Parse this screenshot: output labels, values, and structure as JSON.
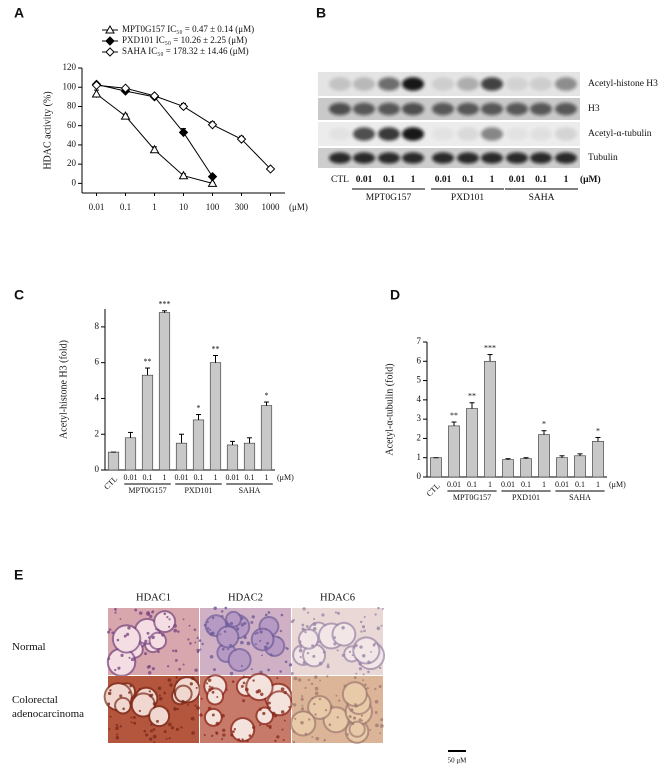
{
  "panels": [
    "A",
    "B",
    "C",
    "D",
    "E"
  ],
  "chart_data": [
    {
      "type": "line",
      "y_label": "HDAC activity (%)",
      "x_unit": "(μM)",
      "categories": [
        "0.01",
        "0.1",
        "1",
        "10",
        "100",
        "300",
        "1000"
      ],
      "ylim": [
        -10,
        120
      ],
      "yticks": [
        0,
        20,
        40,
        60,
        80,
        100,
        120
      ],
      "series": [
        {
          "name": "MPT0G157 IC₅₀ = 0.47 ± 0.14 (μM)",
          "marker": "triangle-open",
          "color": "#000000",
          "values": [
            93,
            70,
            35,
            8,
            0,
            null,
            null
          ],
          "errors": [
            4,
            2,
            3,
            2,
            1,
            null,
            null
          ]
        },
        {
          "name": "PXD101 IC₅₀ = 10.26 ± 2.25 (μM)",
          "marker": "diamond-filled",
          "color": "#000000",
          "values": [
            103,
            96,
            90,
            53,
            7,
            null,
            null
          ],
          "errors": [
            2,
            3,
            3,
            4,
            1,
            null,
            null
          ]
        },
        {
          "name": "SAHA IC₅₀ = 178.32 ± 14.46 (μM)",
          "marker": "diamond-open",
          "color": "#000000",
          "values": [
            102,
            99,
            91,
            80,
            61,
            46,
            15
          ],
          "errors": [
            2,
            1,
            2,
            3,
            3,
            3,
            1
          ]
        }
      ]
    },
    {
      "type": "bar",
      "y_label": "Acetyl-histone H3 (fold)",
      "x_unit": "(μM)",
      "color": "#c8c8c8",
      "categories": [
        "CTL",
        "0.01",
        "0.1",
        "1",
        "0.01",
        "0.1",
        "1",
        "0.01",
        "0.1",
        "1"
      ],
      "groups": [
        "MPT0G157",
        "PXD101",
        "SAHA"
      ],
      "values": [
        1,
        1.8,
        5.3,
        8.8,
        1.5,
        2.8,
        6.0,
        1.4,
        1.5,
        3.6
      ],
      "errors": [
        0,
        0.3,
        0.4,
        0.1,
        0.5,
        0.3,
        0.4,
        0.2,
        0.3,
        0.2
      ],
      "annotations": [
        null,
        null,
        "**",
        "***",
        null,
        "*",
        "**",
        null,
        null,
        "*"
      ],
      "ylim": [
        0,
        9
      ],
      "yticks": [
        0,
        2,
        4,
        6,
        8
      ]
    },
    {
      "type": "bar",
      "y_label": "Acetyl-α-tubulin (fold)",
      "x_unit": "(μM)",
      "color": "#c8c8c8",
      "categories": [
        "CTL",
        "0.01",
        "0.1",
        "1",
        "0.01",
        "0.1",
        "1",
        "0.01",
        "0.1",
        "1"
      ],
      "groups": [
        "MPT0G157",
        "PXD101",
        "SAHA"
      ],
      "values": [
        1,
        2.65,
        3.55,
        6.0,
        0.9,
        0.95,
        2.2,
        1.0,
        1.1,
        1.85
      ],
      "errors": [
        0,
        0.2,
        0.3,
        0.35,
        0.05,
        0.05,
        0.2,
        0.1,
        0.1,
        0.2
      ],
      "annotations": [
        null,
        "**",
        "**",
        "***",
        null,
        null,
        "*",
        null,
        null,
        "*"
      ],
      "ylim": [
        0,
        7
      ],
      "yticks": [
        0,
        1,
        2,
        3,
        4,
        5,
        6,
        7
      ]
    }
  ],
  "blot": {
    "rows": [
      "Acetyl-histone H3",
      "H3",
      "Acetyl-α-tubulin",
      "Tubulin"
    ],
    "lanes": [
      "CTL",
      "0.01",
      "0.1",
      "1",
      "0.01",
      "0.1",
      "1",
      "0.01",
      "0.1",
      "1"
    ],
    "groups": [
      "MPT0G157",
      "PXD101",
      "SAHA"
    ],
    "unit": "(μM)"
  },
  "histology": {
    "columns": [
      "HDAC1",
      "HDAC2",
      "HDAC6"
    ],
    "rows": [
      "Normal",
      "Colorectal adenocarcinoma"
    ],
    "scale_bar": "50 μM"
  }
}
